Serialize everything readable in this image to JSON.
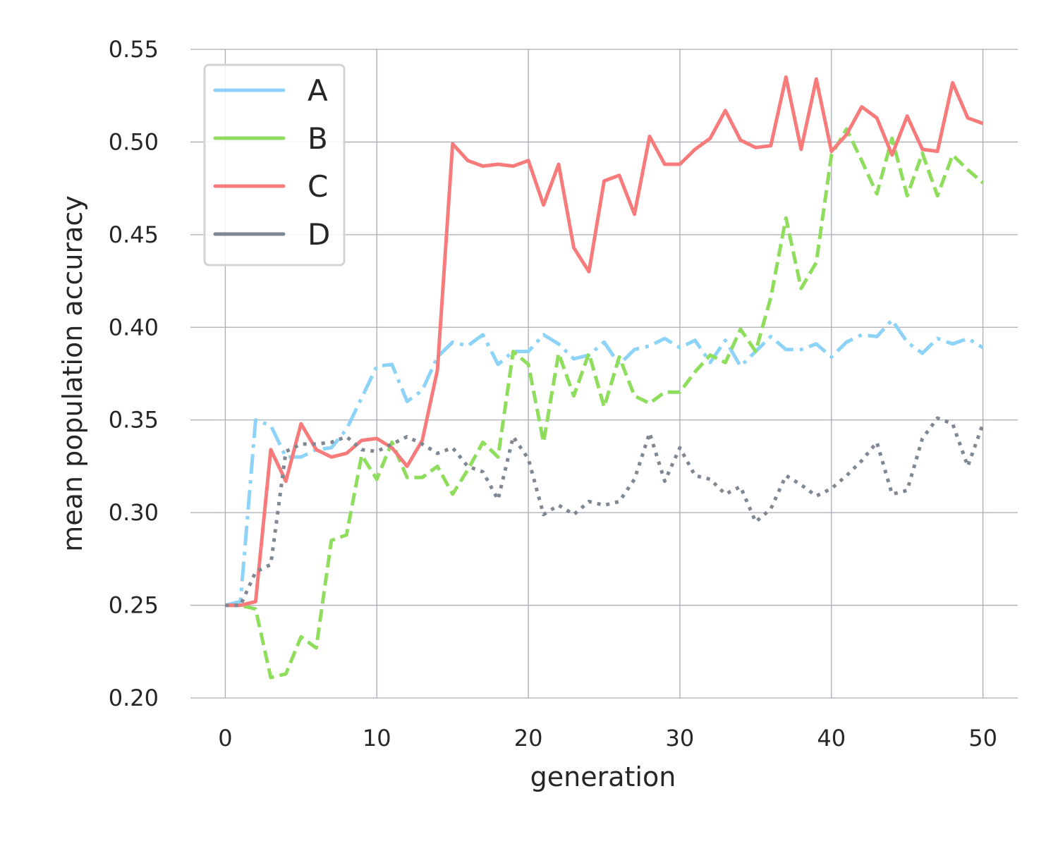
{
  "chart_data": {
    "type": "line",
    "xlabel": "generation",
    "ylabel": "mean population accuracy",
    "xlim": [
      -2.3,
      52.3
    ],
    "ylim": [
      0.2,
      0.55
    ],
    "xticks": [
      0,
      10,
      20,
      30,
      40,
      50
    ],
    "yticks": [
      0.2,
      0.25,
      0.3,
      0.35,
      0.4,
      0.45,
      0.5,
      0.55
    ],
    "xtick_labels": [
      "0",
      "10",
      "20",
      "30",
      "40",
      "50"
    ],
    "ytick_labels": [
      "0.20",
      "0.25",
      "0.30",
      "0.35",
      "0.40",
      "0.45",
      "0.50",
      "0.55"
    ],
    "grid": true,
    "legend_position": "top-left",
    "x": [
      0,
      1,
      2,
      3,
      4,
      5,
      6,
      7,
      8,
      9,
      10,
      11,
      12,
      13,
      14,
      15,
      16,
      17,
      18,
      19,
      20,
      21,
      22,
      23,
      24,
      25,
      26,
      27,
      28,
      29,
      30,
      31,
      32,
      33,
      34,
      35,
      36,
      37,
      38,
      39,
      40,
      41,
      42,
      43,
      44,
      45,
      46,
      47,
      48,
      49,
      50
    ],
    "series": [
      {
        "name": "A",
        "color": "#8dd3f7",
        "dash": "dashdot",
        "values": [
          0.25,
          0.252,
          0.35,
          0.347,
          0.33,
          0.33,
          0.334,
          0.335,
          0.345,
          0.362,
          0.379,
          0.38,
          0.36,
          0.366,
          0.384,
          0.392,
          0.39,
          0.396,
          0.38,
          0.387,
          0.387,
          0.396,
          0.391,
          0.383,
          0.385,
          0.392,
          0.38,
          0.388,
          0.39,
          0.394,
          0.389,
          0.393,
          0.381,
          0.393,
          0.379,
          0.387,
          0.395,
          0.388,
          0.388,
          0.391,
          0.384,
          0.392,
          0.396,
          0.395,
          0.404,
          0.392,
          0.386,
          0.394,
          0.391,
          0.394,
          0.389
        ]
      },
      {
        "name": "B",
        "color": "#8fdd5d",
        "dash": "dashed",
        "values": [
          0.25,
          0.25,
          0.248,
          0.211,
          0.213,
          0.233,
          0.227,
          0.285,
          0.288,
          0.331,
          0.318,
          0.338,
          0.319,
          0.319,
          0.325,
          0.31,
          0.323,
          0.338,
          0.33,
          0.387,
          0.38,
          0.338,
          0.386,
          0.363,
          0.386,
          0.357,
          0.384,
          0.363,
          0.359,
          0.365,
          0.365,
          0.376,
          0.385,
          0.381,
          0.399,
          0.387,
          0.416,
          0.459,
          0.421,
          0.435,
          0.493,
          0.507,
          0.49,
          0.472,
          0.502,
          0.471,
          0.494,
          0.471,
          0.493,
          0.485,
          0.478
        ]
      },
      {
        "name": "C",
        "color": "#f77b7b",
        "dash": "solid",
        "values": [
          0.25,
          0.25,
          0.252,
          0.334,
          0.317,
          0.348,
          0.334,
          0.33,
          0.332,
          0.339,
          0.34,
          0.335,
          0.325,
          0.339,
          0.377,
          0.499,
          0.49,
          0.487,
          0.488,
          0.487,
          0.49,
          0.466,
          0.488,
          0.443,
          0.43,
          0.479,
          0.482,
          0.461,
          0.503,
          0.488,
          0.488,
          0.496,
          0.502,
          0.517,
          0.501,
          0.497,
          0.498,
          0.535,
          0.496,
          0.534,
          0.495,
          0.504,
          0.519,
          0.513,
          0.493,
          0.514,
          0.496,
          0.495,
          0.532,
          0.513,
          0.51
        ]
      },
      {
        "name": "D",
        "color": "#7f8792",
        "dash": "dotted",
        "values": [
          0.25,
          0.25,
          0.268,
          0.272,
          0.333,
          0.337,
          0.337,
          0.338,
          0.341,
          0.334,
          0.333,
          0.337,
          0.341,
          0.337,
          0.332,
          0.335,
          0.325,
          0.322,
          0.307,
          0.341,
          0.329,
          0.299,
          0.304,
          0.299,
          0.306,
          0.304,
          0.306,
          0.318,
          0.343,
          0.317,
          0.335,
          0.32,
          0.318,
          0.31,
          0.314,
          0.295,
          0.302,
          0.32,
          0.315,
          0.309,
          0.313,
          0.32,
          0.328,
          0.338,
          0.31,
          0.312,
          0.34,
          0.351,
          0.348,
          0.325,
          0.348
        ]
      }
    ]
  }
}
